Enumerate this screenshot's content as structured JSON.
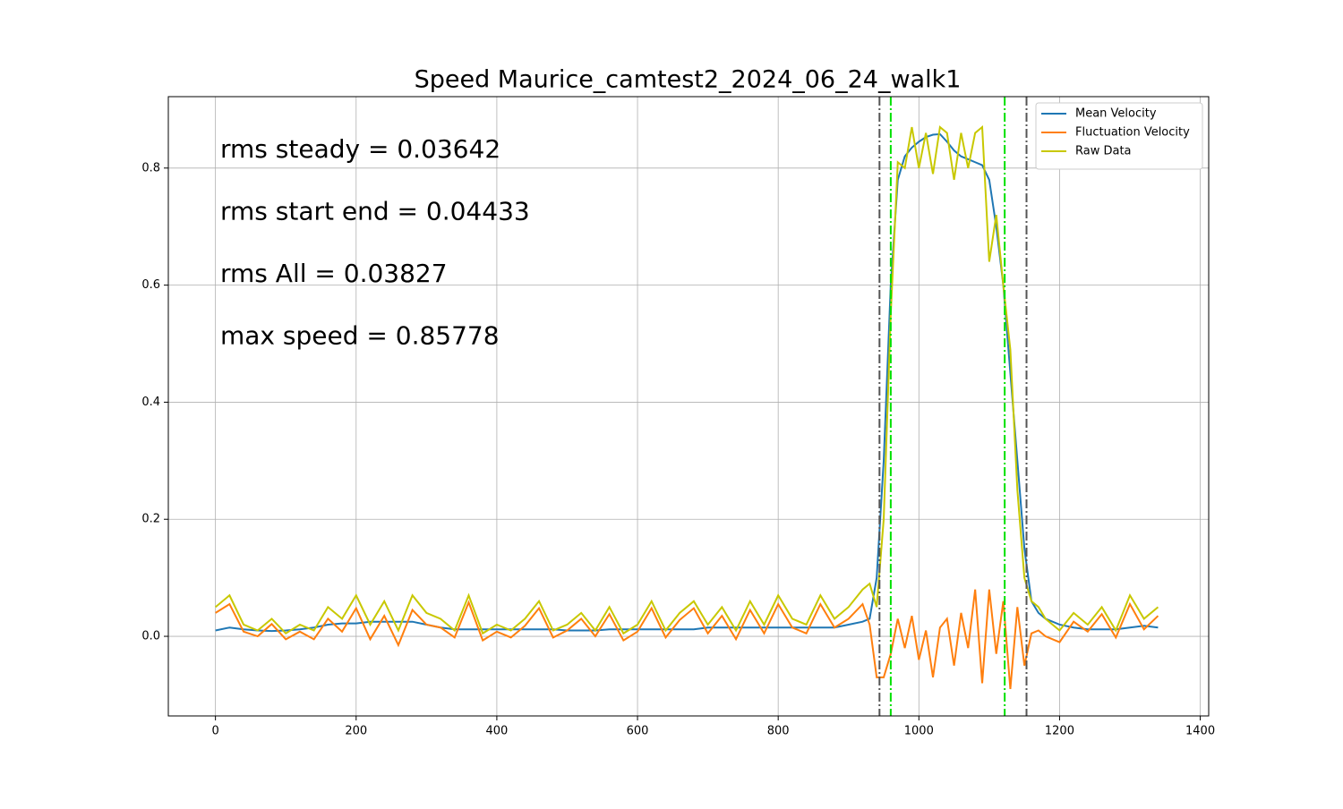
{
  "chart_data": {
    "type": "line",
    "title": "Speed Maurice_camtest2_2024_06_24_walk1",
    "annotations": [
      "rms steady = 0.03642",
      "rms start end = 0.04433",
      "rms All = 0.03827",
      "max speed = 0.85778"
    ],
    "x": [
      0,
      20,
      40,
      60,
      80,
      100,
      120,
      140,
      160,
      180,
      200,
      220,
      240,
      260,
      280,
      300,
      320,
      340,
      360,
      380,
      400,
      420,
      440,
      460,
      480,
      500,
      520,
      540,
      560,
      580,
      600,
      620,
      640,
      660,
      680,
      700,
      720,
      740,
      760,
      780,
      800,
      820,
      840,
      860,
      880,
      900,
      920,
      930,
      940,
      950,
      960,
      970,
      980,
      990,
      1000,
      1010,
      1020,
      1030,
      1040,
      1050,
      1060,
      1070,
      1080,
      1090,
      1100,
      1110,
      1120,
      1130,
      1140,
      1150,
      1160,
      1170,
      1180,
      1200,
      1220,
      1240,
      1260,
      1280,
      1300,
      1320,
      1340
    ],
    "series": [
      {
        "name": "Mean Velocity",
        "color": "#1f77b4",
        "values": [
          0.01,
          0.015,
          0.012,
          0.01,
          0.009,
          0.01,
          0.012,
          0.015,
          0.02,
          0.022,
          0.022,
          0.025,
          0.025,
          0.025,
          0.025,
          0.02,
          0.015,
          0.012,
          0.012,
          0.012,
          0.012,
          0.012,
          0.012,
          0.012,
          0.012,
          0.01,
          0.01,
          0.01,
          0.012,
          0.012,
          0.012,
          0.012,
          0.012,
          0.012,
          0.012,
          0.015,
          0.015,
          0.015,
          0.015,
          0.015,
          0.015,
          0.015,
          0.015,
          0.015,
          0.015,
          0.02,
          0.025,
          0.03,
          0.1,
          0.3,
          0.6,
          0.78,
          0.82,
          0.835,
          0.845,
          0.853,
          0.857,
          0.858,
          0.845,
          0.83,
          0.82,
          0.815,
          0.81,
          0.805,
          0.78,
          0.7,
          0.6,
          0.45,
          0.3,
          0.15,
          0.06,
          0.04,
          0.03,
          0.02,
          0.015,
          0.012,
          0.012,
          0.012,
          0.015,
          0.018,
          0.015
        ]
      },
      {
        "name": "Fluctuation Velocity",
        "color": "#ff7f0e",
        "values": [
          0.04,
          0.055,
          0.008,
          0,
          0.021,
          -0.005,
          0.008,
          -0.005,
          0.03,
          0.008,
          0.048,
          -0.005,
          0.035,
          -0.015,
          0.045,
          0.02,
          0.015,
          -0.002,
          0.058,
          -0.007,
          0.008,
          -0.002,
          0.018,
          0.048,
          -0.002,
          0.01,
          0.03,
          0,
          0.038,
          -0.007,
          0.008,
          0.048,
          -0.002,
          0.028,
          0.048,
          0.005,
          0.035,
          -0.005,
          0.045,
          0.005,
          0.055,
          0.015,
          0.005,
          0.055,
          0.015,
          0.03,
          0.055,
          0.02,
          -0.07,
          -0.07,
          -0.03,
          0.03,
          -0.02,
          0.035,
          -0.04,
          0.01,
          -0.07,
          0.015,
          0.03,
          -0.05,
          0.04,
          -0.02,
          0.08,
          -0.08,
          0.08,
          -0.03,
          0.06,
          -0.09,
          0.05,
          -0.05,
          0.005,
          0.01,
          0,
          -0.01,
          0.025,
          0.008,
          0.038,
          -0.002,
          0.055,
          0.012,
          0.035
        ]
      },
      {
        "name": "Raw Data",
        "color": "#c8c800",
        "values": [
          0.05,
          0.07,
          0.02,
          0.01,
          0.03,
          0.005,
          0.02,
          0.01,
          0.05,
          0.03,
          0.07,
          0.02,
          0.06,
          0.01,
          0.07,
          0.04,
          0.03,
          0.01,
          0.07,
          0.005,
          0.02,
          0.01,
          0.03,
          0.06,
          0.01,
          0.02,
          0.04,
          0.01,
          0.05,
          0.005,
          0.02,
          0.06,
          0.01,
          0.04,
          0.06,
          0.02,
          0.05,
          0.01,
          0.06,
          0.02,
          0.07,
          0.03,
          0.02,
          0.07,
          0.03,
          0.05,
          0.08,
          0.09,
          0.05,
          0.2,
          0.55,
          0.81,
          0.8,
          0.87,
          0.8,
          0.86,
          0.79,
          0.87,
          0.86,
          0.78,
          0.86,
          0.8,
          0.86,
          0.87,
          0.64,
          0.72,
          0.6,
          0.49,
          0.25,
          0.1,
          0.06,
          0.05,
          0.03,
          0.01,
          0.04,
          0.02,
          0.05,
          0.01,
          0.07,
          0.03,
          0.05
        ]
      }
    ],
    "vlines": [
      {
        "x": 944,
        "color": "#555555"
      },
      {
        "x": 960,
        "color": "#00e000"
      },
      {
        "x": 1122,
        "color": "#00e000"
      },
      {
        "x": 1153,
        "color": "#555555"
      }
    ],
    "xlim": [
      -67,
      1412
    ],
    "ylim": [
      -0.136,
      0.922
    ],
    "xticks": [
      0,
      200,
      400,
      600,
      800,
      1000,
      1200,
      1400
    ],
    "yticks": [
      {
        "value": 0,
        "label": "0.0"
      },
      0.2,
      0.4,
      0.6,
      0.8
    ],
    "grid": true,
    "legend": "upper right"
  }
}
